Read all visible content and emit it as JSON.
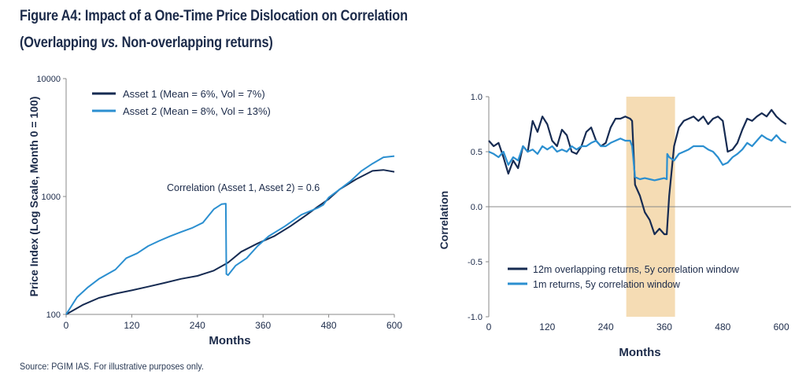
{
  "title_line1": "Figure A4: Impact of a One-Time Price Dislocation on Correlation",
  "title_line2_a": "(Overlapping ",
  "title_line2_vs": "vs.",
  "title_line2_b": " Non-overlapping returns)",
  "source": "Source: PGIM IAS. For illustrative purposes only.",
  "colors": {
    "navy": "#162b52",
    "blue": "#2b8fd0",
    "band": "#f5dcb4",
    "axis": "#888888"
  },
  "chart_data": [
    {
      "type": "line",
      "xlabel": "Months",
      "ylabel": "Price Index (Log Scale, Month 0 = 100)",
      "yscale": "log",
      "xlim": [
        0,
        600
      ],
      "ylim": [
        100,
        10000
      ],
      "xticks": [
        "0",
        "120",
        "240",
        "360",
        "480",
        "600"
      ],
      "yticks": [
        "100",
        "1000",
        "10000"
      ],
      "legend_position": "top-left",
      "annotation": "Correlation (Asset 1, Asset 2) = 0.6",
      "series": [
        {
          "name": "Asset 1 (Mean = 6%, Vol = 7%)",
          "color": "#162b52",
          "x": [
            0,
            30,
            60,
            90,
            120,
            150,
            180,
            210,
            240,
            270,
            296,
            320,
            350,
            380,
            410,
            440,
            460,
            480,
            500,
            530,
            560,
            580,
            600
          ],
          "y": [
            100,
            120,
            138,
            150,
            160,
            172,
            185,
            200,
            212,
            235,
            275,
            340,
            400,
            460,
            560,
            700,
            820,
            950,
            1150,
            1400,
            1650,
            1680,
            1620
          ]
        },
        {
          "name": "Asset 2 (Mean = 8%, Vol = 13%)",
          "color": "#2b8fd0",
          "x": [
            0,
            20,
            40,
            60,
            90,
            110,
            130,
            150,
            170,
            190,
            210,
            230,
            250,
            270,
            284,
            292,
            293,
            296,
            310,
            330,
            350,
            370,
            400,
            430,
            460,
            470,
            480,
            500,
            520,
            540,
            560,
            580,
            600
          ],
          "y": [
            100,
            140,
            170,
            200,
            240,
            300,
            330,
            380,
            420,
            460,
            500,
            540,
            600,
            780,
            860,
            870,
            220,
            215,
            260,
            300,
            380,
            460,
            560,
            700,
            800,
            850,
            980,
            1150,
            1350,
            1650,
            1900,
            2150,
            2200
          ]
        }
      ]
    },
    {
      "type": "line",
      "xlabel": "Months",
      "ylabel": "Correlation",
      "xlim": [
        0,
        620
      ],
      "ylim": [
        -1.0,
        1.0
      ],
      "xticks": [
        "0",
        "120",
        "240",
        "360",
        "480",
        "600"
      ],
      "yticks": [
        "1.0",
        "0.5",
        "0.0",
        "-0.5",
        "-1.0"
      ],
      "shaded_region": [
        282,
        382
      ],
      "legend_position": "bottom-center",
      "series": [
        {
          "name": "12m overlapping returns, 5y correlation window",
          "color": "#162b52",
          "x": [
            0,
            10,
            20,
            30,
            40,
            50,
            60,
            70,
            80,
            90,
            100,
            110,
            120,
            130,
            140,
            150,
            160,
            170,
            180,
            190,
            200,
            210,
            220,
            230,
            240,
            250,
            260,
            270,
            280,
            290,
            294,
            300,
            310,
            320,
            330,
            340,
            350,
            360,
            365,
            370,
            380,
            390,
            400,
            410,
            420,
            430,
            440,
            450,
            460,
            470,
            480,
            490,
            500,
            510,
            520,
            530,
            540,
            550,
            560,
            570,
            580,
            590,
            600,
            610
          ],
          "y": [
            0.6,
            0.55,
            0.58,
            0.45,
            0.3,
            0.42,
            0.35,
            0.55,
            0.5,
            0.78,
            0.68,
            0.82,
            0.75,
            0.6,
            0.55,
            0.7,
            0.65,
            0.5,
            0.48,
            0.55,
            0.68,
            0.72,
            0.6,
            0.55,
            0.58,
            0.72,
            0.8,
            0.8,
            0.82,
            0.8,
            0.78,
            0.2,
            0.1,
            -0.05,
            -0.12,
            -0.25,
            -0.2,
            -0.25,
            -0.25,
            0.1,
            0.55,
            0.72,
            0.78,
            0.8,
            0.82,
            0.78,
            0.82,
            0.75,
            0.8,
            0.82,
            0.78,
            0.5,
            0.52,
            0.58,
            0.7,
            0.8,
            0.78,
            0.82,
            0.85,
            0.82,
            0.88,
            0.82,
            0.78,
            0.75
          ]
        },
        {
          "name": "1m returns, 5y correlation window",
          "color": "#2b8fd0",
          "x": [
            0,
            10,
            20,
            30,
            40,
            50,
            60,
            70,
            80,
            90,
            100,
            110,
            120,
            130,
            140,
            150,
            160,
            170,
            180,
            190,
            200,
            210,
            220,
            230,
            240,
            250,
            260,
            270,
            280,
            290,
            294,
            300,
            310,
            320,
            330,
            340,
            350,
            360,
            365,
            366,
            370,
            380,
            390,
            400,
            410,
            420,
            430,
            440,
            450,
            460,
            470,
            480,
            490,
            500,
            510,
            520,
            530,
            540,
            550,
            560,
            570,
            580,
            590,
            600,
            610
          ],
          "y": [
            0.5,
            0.48,
            0.45,
            0.5,
            0.38,
            0.45,
            0.42,
            0.55,
            0.5,
            0.52,
            0.48,
            0.55,
            0.52,
            0.55,
            0.5,
            0.52,
            0.5,
            0.55,
            0.52,
            0.55,
            0.55,
            0.58,
            0.6,
            0.55,
            0.55,
            0.58,
            0.6,
            0.62,
            0.6,
            0.6,
            0.55,
            0.27,
            0.25,
            0.26,
            0.25,
            0.24,
            0.25,
            0.26,
            0.25,
            0.48,
            0.45,
            0.42,
            0.48,
            0.5,
            0.52,
            0.55,
            0.55,
            0.55,
            0.52,
            0.5,
            0.45,
            0.38,
            0.4,
            0.45,
            0.48,
            0.52,
            0.58,
            0.55,
            0.6,
            0.65,
            0.62,
            0.6,
            0.65,
            0.6,
            0.58
          ]
        }
      ]
    }
  ]
}
